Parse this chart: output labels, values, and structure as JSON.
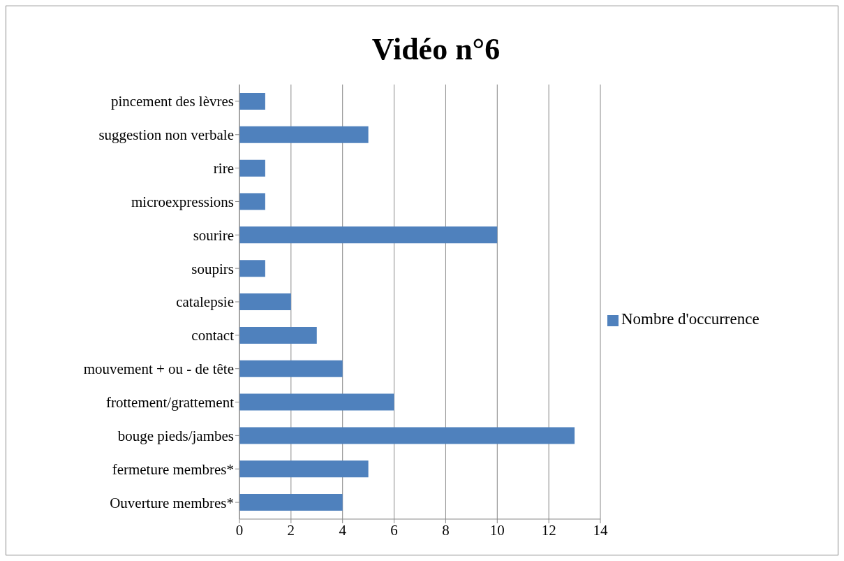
{
  "chart_data": {
    "type": "bar",
    "orientation": "horizontal",
    "title": "Vidéo n°6",
    "categories": [
      "pincement des lèvres",
      "suggestion non verbale",
      "rire",
      "microexpressions",
      "sourire",
      "soupirs",
      "catalepsie",
      "contact",
      "mouvement + ou - de tête",
      "frottement/grattement",
      "bouge pieds/jambes",
      "fermeture membres*",
      "Ouverture membres*"
    ],
    "series": [
      {
        "name": "Nombre d'occurrence",
        "color": "#4f81bd",
        "values": [
          1,
          5,
          1,
          1,
          10,
          1,
          2,
          3,
          4,
          6,
          13,
          5,
          4
        ]
      }
    ],
    "xlim": [
      0,
      14
    ],
    "xticks": [
      0,
      2,
      4,
      6,
      8,
      10,
      12,
      14
    ],
    "grid": "x",
    "legend": "right"
  }
}
